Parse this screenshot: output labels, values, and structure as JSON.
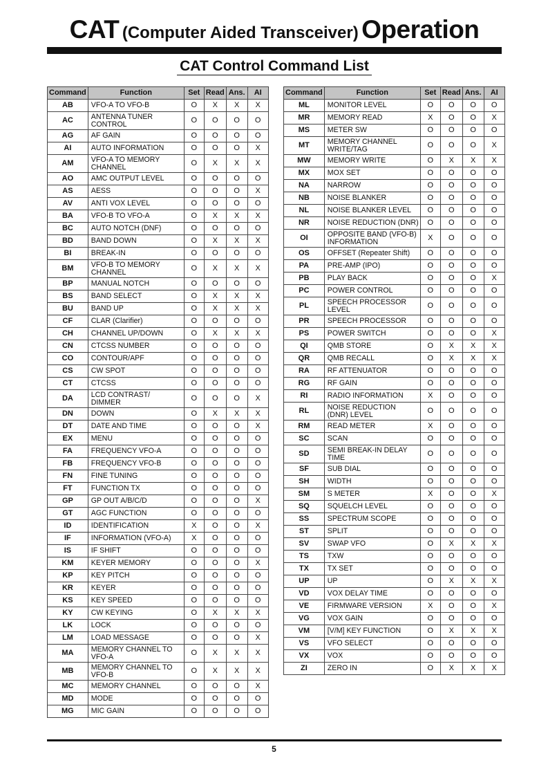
{
  "header": {
    "title_left": "CAT",
    "title_middle": "(Computer Aided Transceiver)",
    "title_right": "Operation",
    "subtitle": "CAT Control Command List"
  },
  "columns": [
    "Command",
    "Function",
    "Set",
    "Read",
    "Ans.",
    "AI"
  ],
  "left_rows": [
    [
      "AB",
      "VFO-A TO VFO-B",
      "O",
      "X",
      "X",
      "X"
    ],
    [
      "AC",
      "ANTENNA TUNER\nCONTROL",
      "O",
      "O",
      "O",
      "O"
    ],
    [
      "AG",
      "AF GAIN",
      "O",
      "O",
      "O",
      "O"
    ],
    [
      "AI",
      "AUTO INFORMATION",
      "O",
      "O",
      "O",
      "X"
    ],
    [
      "AM",
      "VFO-A TO MEMORY\nCHANNEL",
      "O",
      "X",
      "X",
      "X"
    ],
    [
      "AO",
      "AMC OUTPUT LEVEL",
      "O",
      "O",
      "O",
      "O"
    ],
    [
      "AS",
      "AESS",
      "O",
      "O",
      "O",
      "X"
    ],
    [
      "AV",
      "ANTI VOX LEVEL",
      "O",
      "O",
      "O",
      "O"
    ],
    [
      "BA",
      "VFO-B TO VFO-A",
      "O",
      "X",
      "X",
      "X"
    ],
    [
      "BC",
      "AUTO NOTCH (DNF)",
      "O",
      "O",
      "O",
      "O"
    ],
    [
      "BD",
      "BAND DOWN",
      "O",
      "X",
      "X",
      "X"
    ],
    [
      "BI",
      "BREAK-IN",
      "O",
      "O",
      "O",
      "O"
    ],
    [
      "BM",
      "VFO-B TO MEMORY\nCHANNEL",
      "O",
      "X",
      "X",
      "X"
    ],
    [
      "BP",
      "MANUAL NOTCH",
      "O",
      "O",
      "O",
      "O"
    ],
    [
      "BS",
      "BAND SELECT",
      "O",
      "X",
      "X",
      "X"
    ],
    [
      "BU",
      "BAND UP",
      "O",
      "X",
      "X",
      "X"
    ],
    [
      "CF",
      "CLAR (Clarifier)",
      "O",
      "O",
      "O",
      "O"
    ],
    [
      "CH",
      "CHANNEL UP/DOWN",
      "O",
      "X",
      "X",
      "X"
    ],
    [
      "CN",
      "CTCSS NUMBER",
      "O",
      "O",
      "O",
      "O"
    ],
    [
      "CO",
      "CONTOUR/APF",
      "O",
      "O",
      "O",
      "O"
    ],
    [
      "CS",
      "CW SPOT",
      "O",
      "O",
      "O",
      "O"
    ],
    [
      "CT",
      "CTCSS",
      "O",
      "O",
      "O",
      "O"
    ],
    [
      "DA",
      "LCD CONTRAST/\nDIMMER",
      "O",
      "O",
      "O",
      "X"
    ],
    [
      "DN",
      "DOWN",
      "O",
      "X",
      "X",
      "X"
    ],
    [
      "DT",
      "DATE AND TIME",
      "O",
      "O",
      "O",
      "X"
    ],
    [
      "EX",
      "MENU",
      "O",
      "O",
      "O",
      "O"
    ],
    [
      "FA",
      "FREQUENCY VFO-A",
      "O",
      "O",
      "O",
      "O"
    ],
    [
      "FB",
      "FREQUENCY VFO-B",
      "O",
      "O",
      "O",
      "O"
    ],
    [
      "FN",
      "FINE TUNING",
      "O",
      "O",
      "O",
      "O"
    ],
    [
      "FT",
      "FUNCTION TX",
      "O",
      "O",
      "O",
      "O"
    ],
    [
      "GP",
      "GP OUT A/B/C/D",
      "O",
      "O",
      "O",
      "X"
    ],
    [
      "GT",
      "AGC FUNCTION",
      "O",
      "O",
      "O",
      "O"
    ],
    [
      "ID",
      "IDENTIFICATION",
      "X",
      "O",
      "O",
      "X"
    ],
    [
      "IF",
      "INFORMATION (VFO-A)",
      "X",
      "O",
      "O",
      "O"
    ],
    [
      "IS",
      "IF SHIFT",
      "O",
      "O",
      "O",
      "O"
    ],
    [
      "KM",
      "KEYER MEMORY",
      "O",
      "O",
      "O",
      "X"
    ],
    [
      "KP",
      "KEY PITCH",
      "O",
      "O",
      "O",
      "O"
    ],
    [
      "KR",
      "KEYER",
      "O",
      "O",
      "O",
      "O"
    ],
    [
      "KS",
      "KEY SPEED",
      "O",
      "O",
      "O",
      "O"
    ],
    [
      "KY",
      "CW KEYING",
      "O",
      "X",
      "X",
      "X"
    ],
    [
      "LK",
      "LOCK",
      "O",
      "O",
      "O",
      "O"
    ],
    [
      "LM",
      "LOAD MESSAGE",
      "O",
      "O",
      "O",
      "X"
    ],
    [
      "MA",
      "MEMORY CHANNEL TO\nVFO-A",
      "O",
      "X",
      "X",
      "X"
    ],
    [
      "MB",
      "MEMORY CHANNEL TO\nVFO-B",
      "O",
      "X",
      "X",
      "X"
    ],
    [
      "MC",
      "MEMORY CHANNEL",
      "O",
      "O",
      "O",
      "X"
    ],
    [
      "MD",
      "MODE",
      "O",
      "O",
      "O",
      "O"
    ],
    [
      "MG",
      "MIC GAIN",
      "O",
      "O",
      "O",
      "O"
    ]
  ],
  "right_rows": [
    [
      "ML",
      "MONITOR LEVEL",
      "O",
      "O",
      "O",
      "O"
    ],
    [
      "MR",
      "MEMORY READ",
      "X",
      "O",
      "O",
      "X"
    ],
    [
      "MS",
      "METER SW",
      "O",
      "O",
      "O",
      "O"
    ],
    [
      "MT",
      "MEMORY CHANNEL\nWRITE/TAG",
      "O",
      "O",
      "O",
      "X"
    ],
    [
      "MW",
      "MEMORY WRITE",
      "O",
      "X",
      "X",
      "X"
    ],
    [
      "MX",
      "MOX SET",
      "O",
      "O",
      "O",
      "O"
    ],
    [
      "NA",
      "NARROW",
      "O",
      "O",
      "O",
      "O"
    ],
    [
      "NB",
      "NOISE BLANKER",
      "O",
      "O",
      "O",
      "O"
    ],
    [
      "NL",
      "NOISE BLANKER LEVEL",
      "O",
      "O",
      "O",
      "O"
    ],
    [
      "NR",
      "NOISE REDUCTION (DNR)",
      "O",
      "O",
      "O",
      "O"
    ],
    [
      "OI",
      "OPPOSITE BAND (VFO-B)\nINFORMATION",
      "X",
      "O",
      "O",
      "O"
    ],
    [
      "OS",
      "OFFSET (Repeater Shift)",
      "O",
      "O",
      "O",
      "O"
    ],
    [
      "PA",
      "PRE-AMP (IPO)",
      "O",
      "O",
      "O",
      "O"
    ],
    [
      "PB",
      "PLAY BACK",
      "O",
      "O",
      "O",
      "X"
    ],
    [
      "PC",
      "POWER CONTROL",
      "O",
      "O",
      "O",
      "O"
    ],
    [
      "PL",
      "SPEECH PROCESSOR\nLEVEL",
      "O",
      "O",
      "O",
      "O"
    ],
    [
      "PR",
      "SPEECH PROCESSOR",
      "O",
      "O",
      "O",
      "O"
    ],
    [
      "PS",
      "POWER SWITCH",
      "O",
      "O",
      "O",
      "X"
    ],
    [
      "QI",
      "QMB STORE",
      "O",
      "X",
      "X",
      "X"
    ],
    [
      "QR",
      "QMB RECALL",
      "O",
      "X",
      "X",
      "X"
    ],
    [
      "RA",
      "RF ATTENUATOR",
      "O",
      "O",
      "O",
      "O"
    ],
    [
      "RG",
      "RF GAIN",
      "O",
      "O",
      "O",
      "O"
    ],
    [
      "RI",
      "RADIO INFORMATION",
      "X",
      "O",
      "O",
      "O"
    ],
    [
      "RL",
      "NOISE REDUCTION\n(DNR) LEVEL",
      "O",
      "O",
      "O",
      "O"
    ],
    [
      "RM",
      "READ METER",
      "X",
      "O",
      "O",
      "O"
    ],
    [
      "SC",
      "SCAN",
      "O",
      "O",
      "O",
      "O"
    ],
    [
      "SD",
      "SEMI BREAK-IN DELAY\nTIME",
      "O",
      "O",
      "O",
      "O"
    ],
    [
      "SF",
      "SUB DIAL",
      "O",
      "O",
      "O",
      "O"
    ],
    [
      "SH",
      "WIDTH",
      "O",
      "O",
      "O",
      "O"
    ],
    [
      "SM",
      "S METER",
      "X",
      "O",
      "O",
      "X"
    ],
    [
      "SQ",
      "SQUELCH LEVEL",
      "O",
      "O",
      "O",
      "O"
    ],
    [
      "SS",
      "SPECTRUM SCOPE",
      "O",
      "O",
      "O",
      "O"
    ],
    [
      "ST",
      "SPLIT",
      "O",
      "O",
      "O",
      "O"
    ],
    [
      "SV",
      "SWAP VFO",
      "O",
      "X",
      "X",
      "X"
    ],
    [
      "TS",
      "TXW",
      "O",
      "O",
      "O",
      "O"
    ],
    [
      "TX",
      "TX SET",
      "O",
      "O",
      "O",
      "O"
    ],
    [
      "UP",
      "UP",
      "O",
      "X",
      "X",
      "X"
    ],
    [
      "VD",
      "VOX DELAY TIME",
      "O",
      "O",
      "O",
      "O"
    ],
    [
      "VE",
      "FIRMWARE VERSION",
      "X",
      "O",
      "O",
      "X"
    ],
    [
      "VG",
      "VOX GAIN",
      "O",
      "O",
      "O",
      "O"
    ],
    [
      "VM",
      "[V/M] KEY FUNCTION",
      "O",
      "X",
      "X",
      "X"
    ],
    [
      "VS",
      "VFO SELECT",
      "O",
      "O",
      "O",
      "O"
    ],
    [
      "VX",
      "VOX",
      "O",
      "O",
      "O",
      "O"
    ],
    [
      "ZI",
      "ZERO IN",
      "O",
      "X",
      "X",
      "X"
    ]
  ],
  "footer": {
    "page_number": "5"
  }
}
